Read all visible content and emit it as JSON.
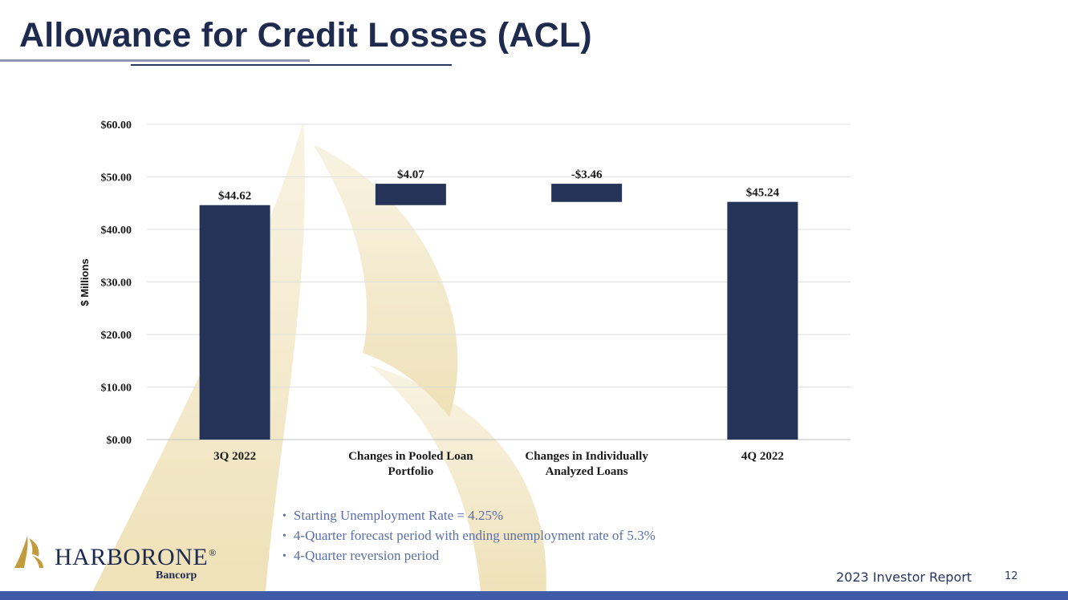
{
  "slide": {
    "title": "Allowance for Credit Losses (ACL)",
    "footer_text": "2023 Investor Report",
    "page_number": "12"
  },
  "colors": {
    "bar": "#243357",
    "title": "#1f2a4f",
    "bullet_text": "#5b6ea8",
    "gold": "#c19b3c",
    "footer_bar": "#3f5aa8"
  },
  "chart_data": {
    "type": "bar",
    "subtype": "waterfall",
    "categories": [
      "3Q 2022",
      "Changes in Pooled Loan Portfolio",
      "Changes in Individually Analyzed Loans",
      "4Q 2022"
    ],
    "category_lines": [
      [
        "3Q 2022"
      ],
      [
        "Changes in Pooled Loan",
        "Portfolio"
      ],
      [
        "Changes in Individually",
        "Analyzed Loans"
      ],
      [
        "4Q 2022"
      ]
    ],
    "values": [
      44.62,
      4.07,
      -3.46,
      45.24
    ],
    "value_labels": [
      "$44.62",
      "$4.07",
      "-$3.46",
      "$45.24"
    ],
    "measure": [
      "absolute",
      "relative",
      "relative",
      "absolute"
    ],
    "ylabel": "$ Millions",
    "ylim": [
      0,
      60
    ],
    "yticks": [
      0,
      10,
      20,
      30,
      40,
      50,
      60
    ],
    "ytick_labels": [
      "$0.00",
      "$10.00",
      "$20.00",
      "$30.00",
      "$40.00",
      "$50.00",
      "$60.00"
    ],
    "grid": true,
    "legend": "none"
  },
  "bullets": [
    "Starting Unemployment Rate  =  4.25%",
    "4-Quarter forecast period with ending unemployment rate of 5.3%",
    "4-Quarter reversion period"
  ],
  "logo": {
    "name": "HARBORONE",
    "sub": "Bancorp",
    "mark_icon": "sail-logo-icon"
  }
}
